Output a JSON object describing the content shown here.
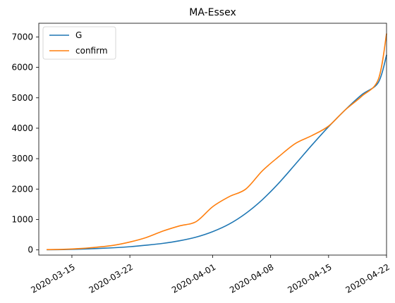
{
  "chart_data": {
    "type": "line",
    "title": "MA-Essex",
    "xlabel": "",
    "ylabel": "",
    "grid": false,
    "legend_position": "top-left",
    "xlim": [
      "2020-03-11",
      "2020-04-22"
    ],
    "ylim": [
      -170,
      7450
    ],
    "x_ticks": [
      "2020-03-15",
      "2020-03-22",
      "2020-04-01",
      "2020-04-08",
      "2020-04-15",
      "2020-04-22"
    ],
    "y_ticks": [
      0,
      1000,
      2000,
      3000,
      4000,
      5000,
      6000,
      7000
    ],
    "series": [
      {
        "name": "G",
        "color": "#1f77b4",
        "points": [
          [
            "2020-03-12",
            5
          ],
          [
            "2020-03-14",
            12
          ],
          [
            "2020-03-16",
            25
          ],
          [
            "2020-03-18",
            45
          ],
          [
            "2020-03-20",
            70
          ],
          [
            "2020-03-22",
            105
          ],
          [
            "2020-03-24",
            155
          ],
          [
            "2020-03-26",
            215
          ],
          [
            "2020-03-28",
            300
          ],
          [
            "2020-03-30",
            420
          ],
          [
            "2020-04-01",
            600
          ],
          [
            "2020-04-03",
            850
          ],
          [
            "2020-04-05",
            1200
          ],
          [
            "2020-04-07",
            1650
          ],
          [
            "2020-04-09",
            2200
          ],
          [
            "2020-04-11",
            2820
          ],
          [
            "2020-04-13",
            3450
          ],
          [
            "2020-04-15",
            4050
          ],
          [
            "2020-04-17",
            4600
          ],
          [
            "2020-04-19",
            5100
          ],
          [
            "2020-04-21",
            5500
          ],
          [
            "2020-04-22",
            6400
          ]
        ]
      },
      {
        "name": "confirm",
        "color": "#ff7f0e",
        "points": [
          [
            "2020-03-12",
            10
          ],
          [
            "2020-03-14",
            20
          ],
          [
            "2020-03-16",
            45
          ],
          [
            "2020-03-18",
            90
          ],
          [
            "2020-03-20",
            150
          ],
          [
            "2020-03-22",
            260
          ],
          [
            "2020-03-24",
            410
          ],
          [
            "2020-03-26",
            620
          ],
          [
            "2020-03-28",
            790
          ],
          [
            "2020-03-30",
            930
          ],
          [
            "2020-04-01",
            1420
          ],
          [
            "2020-04-03",
            1750
          ],
          [
            "2020-04-05",
            2000
          ],
          [
            "2020-04-07",
            2600
          ],
          [
            "2020-04-09",
            3070
          ],
          [
            "2020-04-11",
            3500
          ],
          [
            "2020-04-13",
            3760
          ],
          [
            "2020-04-15",
            4070
          ],
          [
            "2020-04-17",
            4600
          ],
          [
            "2020-04-19",
            5050
          ],
          [
            "2020-04-21",
            5600
          ],
          [
            "2020-04-22",
            7100
          ]
        ]
      }
    ]
  }
}
